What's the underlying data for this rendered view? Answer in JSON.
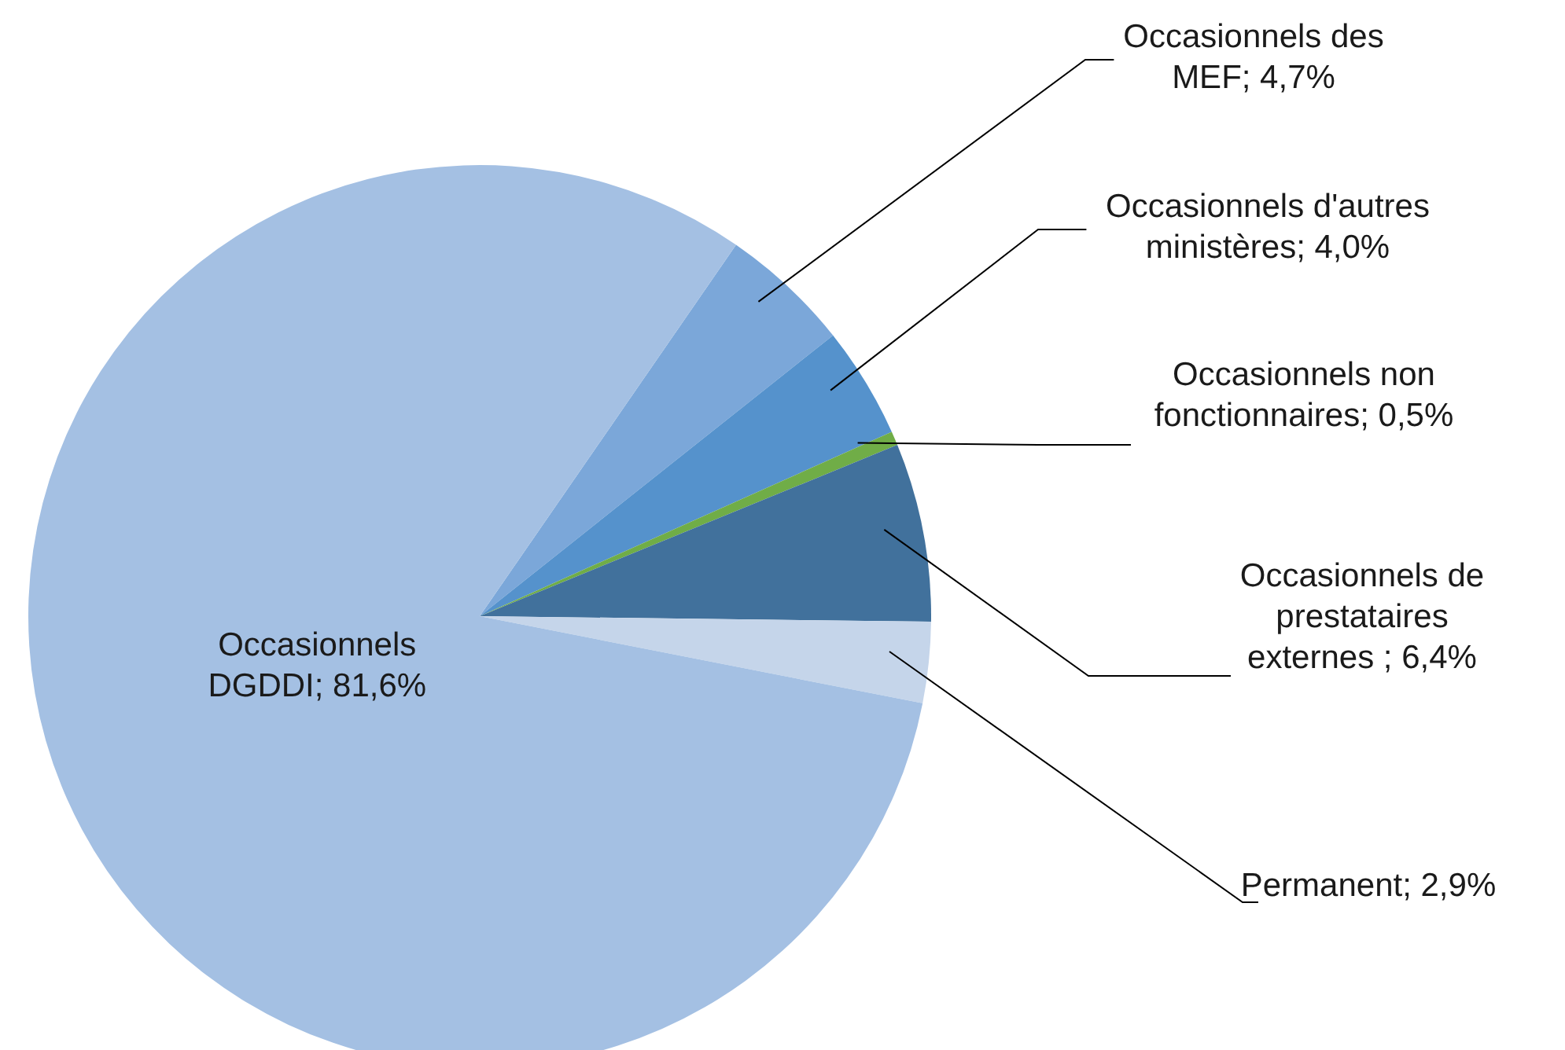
{
  "chart_data": {
    "type": "pie",
    "categories": [
      "Occasionnels des MEF",
      "Occasionnels d'autres ministères",
      "Occasionnels non fonctionnaires",
      "Occasionnels de prestataires externes ",
      "Permanent",
      "Occasionnels DGDDI"
    ],
    "values": [
      4.7,
      4.0,
      0.5,
      6.4,
      2.9,
      81.6
    ],
    "value_labels": [
      "4,7%",
      "4,0%",
      "0,5%",
      "6,4%",
      "2,9%",
      "81,6%"
    ],
    "colors": [
      "#7ba7d9",
      "#5592cc",
      "#70ad47",
      "#41719c",
      "#c5d5ea",
      "#a4c0e3"
    ]
  }
}
